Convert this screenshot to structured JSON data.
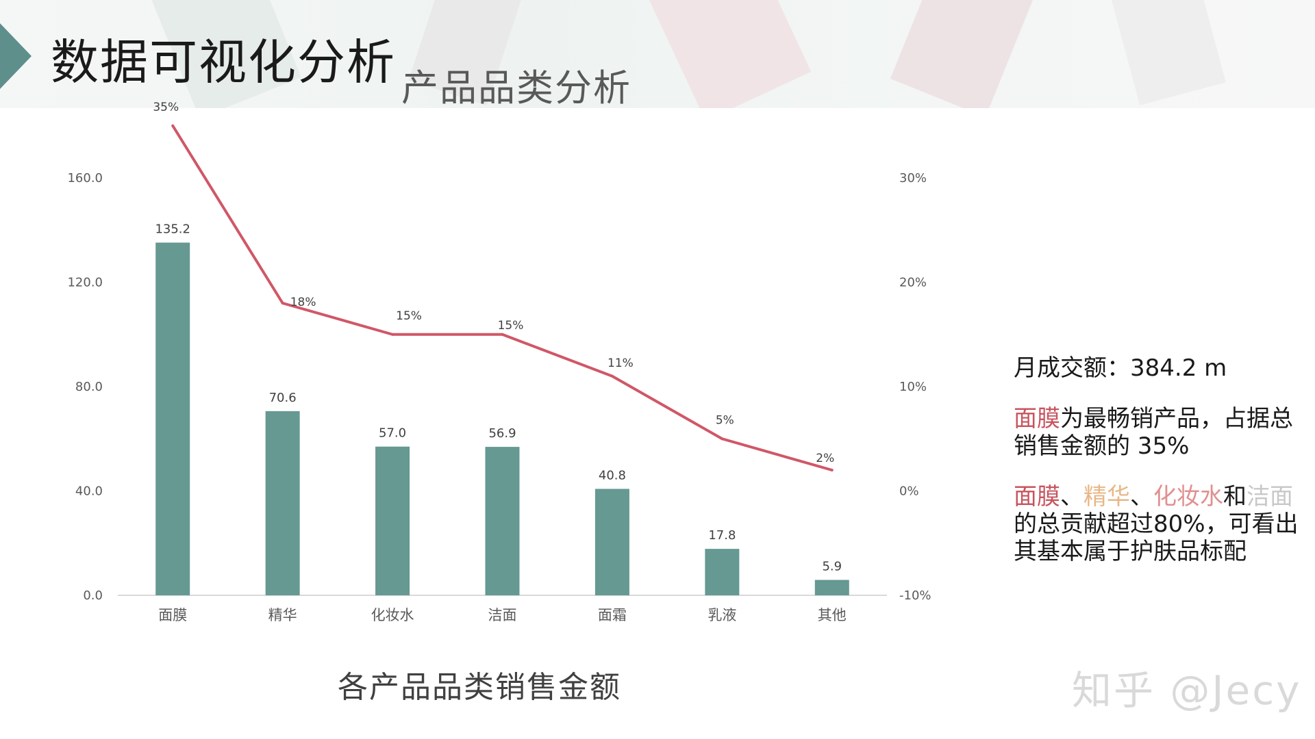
{
  "header": {
    "title": "数据可视化分析",
    "subtitle": "产品品类分析"
  },
  "colors": {
    "bar": "#659992",
    "line": "#d05767",
    "axis": "#d9d9d9",
    "accent_tab": "#5e8f8b"
  },
  "chart_data": {
    "type": "bar",
    "title": "各产品品类销售金额",
    "categories": [
      "面膜",
      "精华",
      "化妆水",
      "洁面",
      "面霜",
      "乳液",
      "其他"
    ],
    "series": [
      {
        "type": "bar",
        "axis": "left",
        "values": [
          135.2,
          70.6,
          57.0,
          56.9,
          40.8,
          17.8,
          5.9
        ],
        "labels": [
          "135.2",
          "70.6",
          "57.0",
          "56.9",
          "40.8",
          "17.8",
          "5.9"
        ]
      },
      {
        "type": "line",
        "axis": "right",
        "values": [
          35,
          18,
          15,
          15,
          11,
          5,
          2
        ],
        "labels": [
          "35%",
          "18%",
          "15%",
          "15%",
          "11%",
          "5%",
          "2%"
        ]
      }
    ],
    "y_left": {
      "ylim": [
        0,
        160
      ],
      "ticks": [
        "0.0",
        "40.0",
        "80.0",
        "120.0",
        "160.0"
      ]
    },
    "y_right": {
      "ylim": [
        -10,
        30
      ],
      "ticks": [
        "-10%",
        "0%",
        "10%",
        "20%",
        "30%"
      ]
    },
    "grid": false,
    "legend": "none"
  },
  "notes": {
    "gmv_label": "月成交额：",
    "gmv_value": "384.2 m",
    "insight1_highlight": "面膜",
    "insight1_text": "为最畅销产品，占据总销售金额的 35%",
    "insight2_mask": "面膜",
    "insight2_sep1": "、",
    "insight2_essence": "精华",
    "insight2_sep2": "、",
    "insight2_toner": "化妆水",
    "insight2_and": "和",
    "insight2_cleanser": "洁面",
    "insight2_text": "的总贡献超过80%，可看出其基本属于护肤品标配"
  },
  "watermark": "知乎 @Jecy"
}
